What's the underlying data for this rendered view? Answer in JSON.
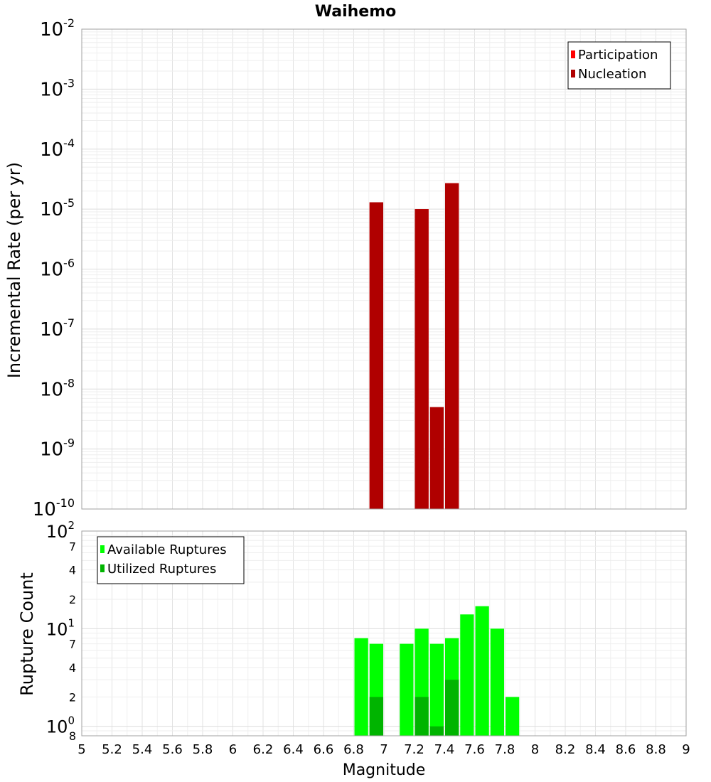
{
  "chart_data": [
    {
      "type": "bar",
      "title": "Waihemo",
      "xlabel": "",
      "ylabel": "Incremental Rate (per yr)",
      "yscale": "log",
      "ylim": [
        1e-10,
        0.01
      ],
      "xlim": [
        5,
        9
      ],
      "bin_width": 0.1,
      "legend_position": "top-right",
      "y_ticks": [
        {
          "base": "10",
          "exp": "-2"
        },
        {
          "base": "10",
          "exp": "-3"
        },
        {
          "base": "10",
          "exp": "-4"
        },
        {
          "base": "10",
          "exp": "-5"
        },
        {
          "base": "10",
          "exp": "-6"
        },
        {
          "base": "10",
          "exp": "-7"
        },
        {
          "base": "10",
          "exp": "-8"
        },
        {
          "base": "10",
          "exp": "-9"
        },
        {
          "base": "10",
          "exp": "-10"
        }
      ],
      "series": [
        {
          "name": "Participation",
          "color": "#ff0000",
          "x": [
            6.95,
            7.25,
            7.45
          ],
          "values": [
            1.3e-05,
            1e-05,
            2.7e-05
          ]
        },
        {
          "name": "Nucleation",
          "color": "#b00000",
          "x": [
            6.95,
            7.25,
            7.35,
            7.45
          ],
          "values": [
            1.3e-05,
            1e-05,
            5e-09,
            2.7e-05
          ]
        }
      ]
    },
    {
      "type": "bar",
      "xlabel": "Magnitude",
      "ylabel": "Rupture Count",
      "yscale": "log",
      "ylim": [
        0.8,
        100
      ],
      "xlim": [
        5,
        9
      ],
      "bin_width": 0.1,
      "legend_position": "top-left",
      "x_ticks": [
        "5",
        "5.2",
        "5.4",
        "5.6",
        "5.8",
        "6",
        "6.2",
        "6.4",
        "6.6",
        "6.8",
        "7",
        "7.2",
        "7.4",
        "7.6",
        "7.8",
        "8",
        "8.2",
        "8.4",
        "8.6",
        "8.8",
        "9"
      ],
      "y_ticks": [
        {
          "value": 100,
          "base": "10",
          "exp": "2"
        },
        {
          "value": 70,
          "label": "7"
        },
        {
          "value": 40,
          "label": "4"
        },
        {
          "value": 20,
          "label": "2"
        },
        {
          "value": 10,
          "base": "10",
          "exp": "1"
        },
        {
          "value": 7,
          "label": "7"
        },
        {
          "value": 4,
          "label": "4"
        },
        {
          "value": 2,
          "label": "2"
        },
        {
          "value": 1,
          "base": "10",
          "exp": "0"
        },
        {
          "value": 0.8,
          "label": "8"
        }
      ],
      "series": [
        {
          "name": "Available Ruptures",
          "color": "#00ff00",
          "x": [
            6.85,
            6.95,
            7.15,
            7.25,
            7.35,
            7.45,
            7.55,
            7.65,
            7.75,
            7.85
          ],
          "values": [
            8,
            7,
            7,
            10,
            7,
            8,
            14,
            17,
            10,
            2
          ]
        },
        {
          "name": "Utilized Ruptures",
          "color": "#00b400",
          "x": [
            6.95,
            7.25,
            7.35,
            7.45
          ],
          "values": [
            2,
            2,
            1,
            3
          ]
        }
      ]
    }
  ]
}
